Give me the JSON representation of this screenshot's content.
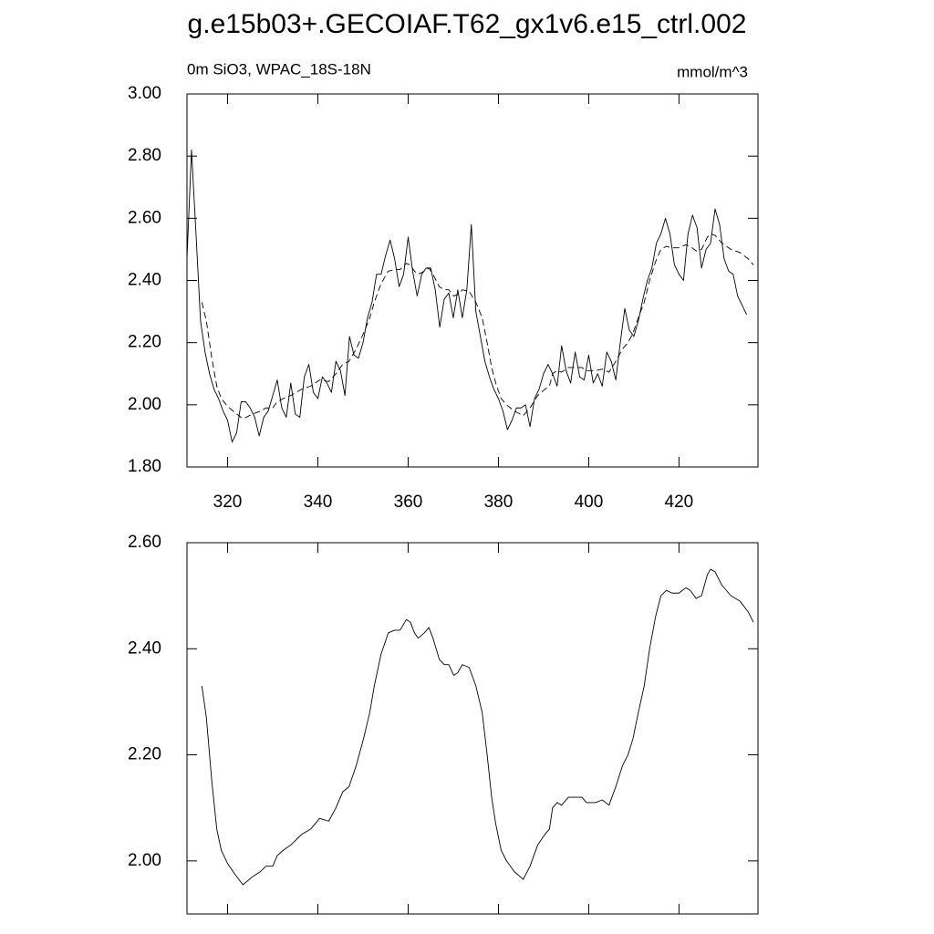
{
  "title": "g.e15b03+.GECOIAF.T62_gx1v6.e15_ctrl.002",
  "chart_data": [
    {
      "type": "line",
      "left_title": "0m SiO3, WPAC_18S-18N",
      "right_title": "mmol/m^3",
      "x": [
        311,
        312,
        313,
        314,
        315,
        316,
        317,
        318,
        319,
        320,
        321,
        322,
        323,
        324,
        325,
        326,
        327,
        328,
        329,
        330,
        331,
        332,
        333,
        334,
        335,
        336,
        337,
        338,
        339,
        340,
        341,
        342,
        343,
        344,
        345,
        346,
        347,
        348,
        349,
        350,
        351,
        352,
        353,
        354,
        355,
        356,
        357,
        358,
        359,
        360,
        361,
        362,
        363,
        364,
        365,
        366,
        367,
        368,
        369,
        370,
        371,
        372,
        373,
        374,
        375,
        376,
        377,
        378,
        379,
        380,
        381,
        382,
        383,
        384,
        385,
        386,
        387,
        388,
        389,
        390,
        391,
        392,
        393,
        394,
        395,
        396,
        397,
        398,
        399,
        400,
        401,
        402,
        403,
        404,
        405,
        406,
        407,
        408,
        409,
        410,
        411,
        412,
        413,
        414,
        415,
        416,
        417,
        418,
        419,
        420,
        421,
        422,
        423,
        424,
        425,
        426,
        427,
        428,
        429,
        430,
        431,
        432,
        433,
        434,
        435
      ],
      "series": [
        {
          "color": "#000000",
          "dashed": false,
          "values": [
            2.47,
            2.82,
            2.55,
            2.27,
            2.17,
            2.1,
            2.05,
            2.02,
            1.98,
            1.95,
            1.88,
            1.91,
            2.01,
            2.01,
            1.99,
            1.96,
            1.9,
            1.96,
            1.98,
            2.03,
            2.08,
            1.99,
            1.96,
            2.07,
            1.97,
            1.96,
            2.09,
            2.13,
            2.04,
            2.02,
            2.09,
            2.07,
            2.04,
            2.14,
            2.11,
            2.03,
            2.22,
            2.16,
            2.15,
            2.2,
            2.28,
            2.33,
            2.42,
            2.42,
            2.48,
            2.53,
            2.47,
            2.38,
            2.42,
            2.54,
            2.43,
            2.35,
            2.42,
            2.44,
            2.44,
            2.37,
            2.25,
            2.34,
            2.36,
            2.28,
            2.37,
            2.28,
            2.37,
            2.58,
            2.3,
            2.22,
            2.14,
            2.09,
            2.05,
            2.02,
            1.98,
            1.92,
            1.95,
            1.99,
            1.99,
            2.0,
            1.93,
            2.02,
            2.05,
            2.1,
            2.13,
            2.1,
            2.06,
            2.19,
            2.11,
            2.07,
            2.17,
            2.09,
            2.08,
            2.16,
            2.07,
            2.1,
            2.06,
            2.17,
            2.14,
            2.08,
            2.2,
            2.31,
            2.24,
            2.22,
            2.27,
            2.34,
            2.4,
            2.44,
            2.52,
            2.55,
            2.6,
            2.55,
            2.45,
            2.42,
            2.4,
            2.55,
            2.61,
            2.57,
            2.44,
            2.5,
            2.52,
            2.63,
            2.58,
            2.47,
            2.43,
            2.42,
            2.35,
            2.32,
            2.29
          ]
        },
        {
          "color": "#000000",
          "dashed": true,
          "x": [
            314.3,
            315.3,
            316.5,
            317.6,
            318.6,
            320,
            321.6,
            323.4,
            325.5,
            327.3,
            328.5,
            330,
            331,
            332.3,
            334,
            336.4,
            338.4,
            340.4,
            342.4,
            344,
            345.5,
            346.9,
            348.5,
            350.1,
            351.5,
            352.5,
            354,
            355.6,
            357,
            358.2,
            359.6,
            360.5,
            361.4,
            362.2,
            363.6,
            364.6,
            365.5,
            366.9,
            368,
            369,
            370.1,
            371,
            372,
            373.5,
            375,
            376.4,
            377.5,
            378.5,
            379.4,
            380.6,
            381.8,
            383.5,
            385.5,
            387,
            388.7,
            390.3,
            391.3,
            392,
            393,
            394,
            395.5,
            397,
            398.5,
            399.5,
            401.5,
            403,
            404.5,
            406,
            407.5,
            408.7,
            409.8,
            411,
            412.3,
            413.5,
            414.8,
            416,
            417.2,
            418.5,
            420,
            421.5,
            422.5,
            423.8,
            425,
            426.3,
            427,
            428,
            429.5,
            431.5,
            433.5,
            435.3,
            436.5
          ],
          "values": [
            2.33,
            2.27,
            2.15,
            2.06,
            2.02,
            1.995,
            1.975,
            1.955,
            1.97,
            1.98,
            1.99,
            1.99,
            2.01,
            2.02,
            2.03,
            2.05,
            2.06,
            2.08,
            2.075,
            2.1,
            2.13,
            2.14,
            2.18,
            2.23,
            2.28,
            2.33,
            2.39,
            2.43,
            2.435,
            2.435,
            2.455,
            2.45,
            2.43,
            2.42,
            2.43,
            2.44,
            2.42,
            2.38,
            2.37,
            2.37,
            2.35,
            2.355,
            2.37,
            2.365,
            2.33,
            2.28,
            2.2,
            2.12,
            2.07,
            2.02,
            2.0,
            1.98,
            1.965,
            1.99,
            2.03,
            2.05,
            2.06,
            2.1,
            2.11,
            2.105,
            2.12,
            2.12,
            2.12,
            2.11,
            2.11,
            2.115,
            2.105,
            2.14,
            2.18,
            2.2,
            2.23,
            2.28,
            2.33,
            2.4,
            2.46,
            2.5,
            2.51,
            2.505,
            2.505,
            2.515,
            2.51,
            2.495,
            2.5,
            2.54,
            2.55,
            2.545,
            2.52,
            2.5,
            2.49,
            2.47,
            2.45
          ]
        }
      ],
      "xlim": [
        311,
        437.5
      ],
      "xticks": [
        320,
        340,
        360,
        380,
        400,
        420
      ],
      "ylim": [
        1.8,
        3.0
      ],
      "yticks": [
        {
          "value": 1.8,
          "label": "1.80"
        },
        {
          "value": 2.0,
          "label": "2.00"
        },
        {
          "value": 2.2,
          "label": "2.20"
        },
        {
          "value": 2.4,
          "label": "2.40"
        },
        {
          "value": 2.6,
          "label": "2.60"
        },
        {
          "value": 2.8,
          "label": "2.80"
        },
        {
          "value": 3.0,
          "label": "3.00"
        }
      ],
      "xtick_labels": true
    },
    {
      "type": "line",
      "x": [
        314.3,
        315.3,
        316.5,
        317.6,
        318.6,
        320,
        321.6,
        323.4,
        325.5,
        327.3,
        328.5,
        330,
        331,
        332.3,
        334,
        336.4,
        338.4,
        340.4,
        342.4,
        344,
        345.5,
        346.9,
        348.5,
        350.1,
        351.5,
        352.5,
        354,
        355.6,
        357,
        358.2,
        359.6,
        360.5,
        361.4,
        362.2,
        363.6,
        364.6,
        365.5,
        366.9,
        368,
        369,
        370.1,
        371,
        372,
        373.5,
        375,
        376.4,
        377.5,
        378.5,
        379.4,
        380.6,
        381.8,
        383.5,
        385.5,
        387,
        388.7,
        390.3,
        391.3,
        392,
        393,
        394,
        395.5,
        397,
        398.5,
        399.5,
        401.5,
        403,
        404.5,
        406,
        407.5,
        408.7,
        409.8,
        411,
        412.3,
        413.5,
        414.8,
        416,
        417.2,
        418.5,
        420,
        421.5,
        422.5,
        423.8,
        425,
        426.3,
        427,
        428,
        429.5,
        431.5,
        433.5,
        435.3,
        436.5
      ],
      "series": [
        {
          "color": "#000000",
          "dashed": false,
          "values": [
            2.33,
            2.27,
            2.15,
            2.06,
            2.02,
            1.995,
            1.975,
            1.955,
            1.97,
            1.98,
            1.99,
            1.99,
            2.01,
            2.02,
            2.03,
            2.05,
            2.06,
            2.08,
            2.075,
            2.1,
            2.13,
            2.14,
            2.18,
            2.23,
            2.28,
            2.33,
            2.39,
            2.43,
            2.435,
            2.435,
            2.455,
            2.45,
            2.43,
            2.42,
            2.43,
            2.44,
            2.42,
            2.38,
            2.37,
            2.37,
            2.35,
            2.355,
            2.37,
            2.365,
            2.33,
            2.28,
            2.2,
            2.12,
            2.07,
            2.02,
            2.0,
            1.98,
            1.965,
            1.99,
            2.03,
            2.05,
            2.06,
            2.1,
            2.11,
            2.105,
            2.12,
            2.12,
            2.12,
            2.11,
            2.11,
            2.115,
            2.105,
            2.14,
            2.18,
            2.2,
            2.23,
            2.28,
            2.33,
            2.4,
            2.46,
            2.5,
            2.51,
            2.505,
            2.505,
            2.515,
            2.51,
            2.495,
            2.5,
            2.54,
            2.55,
            2.545,
            2.52,
            2.5,
            2.49,
            2.47,
            2.45
          ]
        }
      ],
      "xlim": [
        311,
        437.5
      ],
      "xticks": [
        320,
        340,
        360,
        380,
        400,
        420
      ],
      "ylim": [
        1.9,
        2.6
      ],
      "yticks": [
        {
          "value": 2.0,
          "label": "2.00"
        },
        {
          "value": 2.2,
          "label": "2.20"
        },
        {
          "value": 2.4,
          "label": "2.40"
        },
        {
          "value": 2.6,
          "label": "2.60"
        }
      ],
      "xtick_labels": false
    }
  ]
}
